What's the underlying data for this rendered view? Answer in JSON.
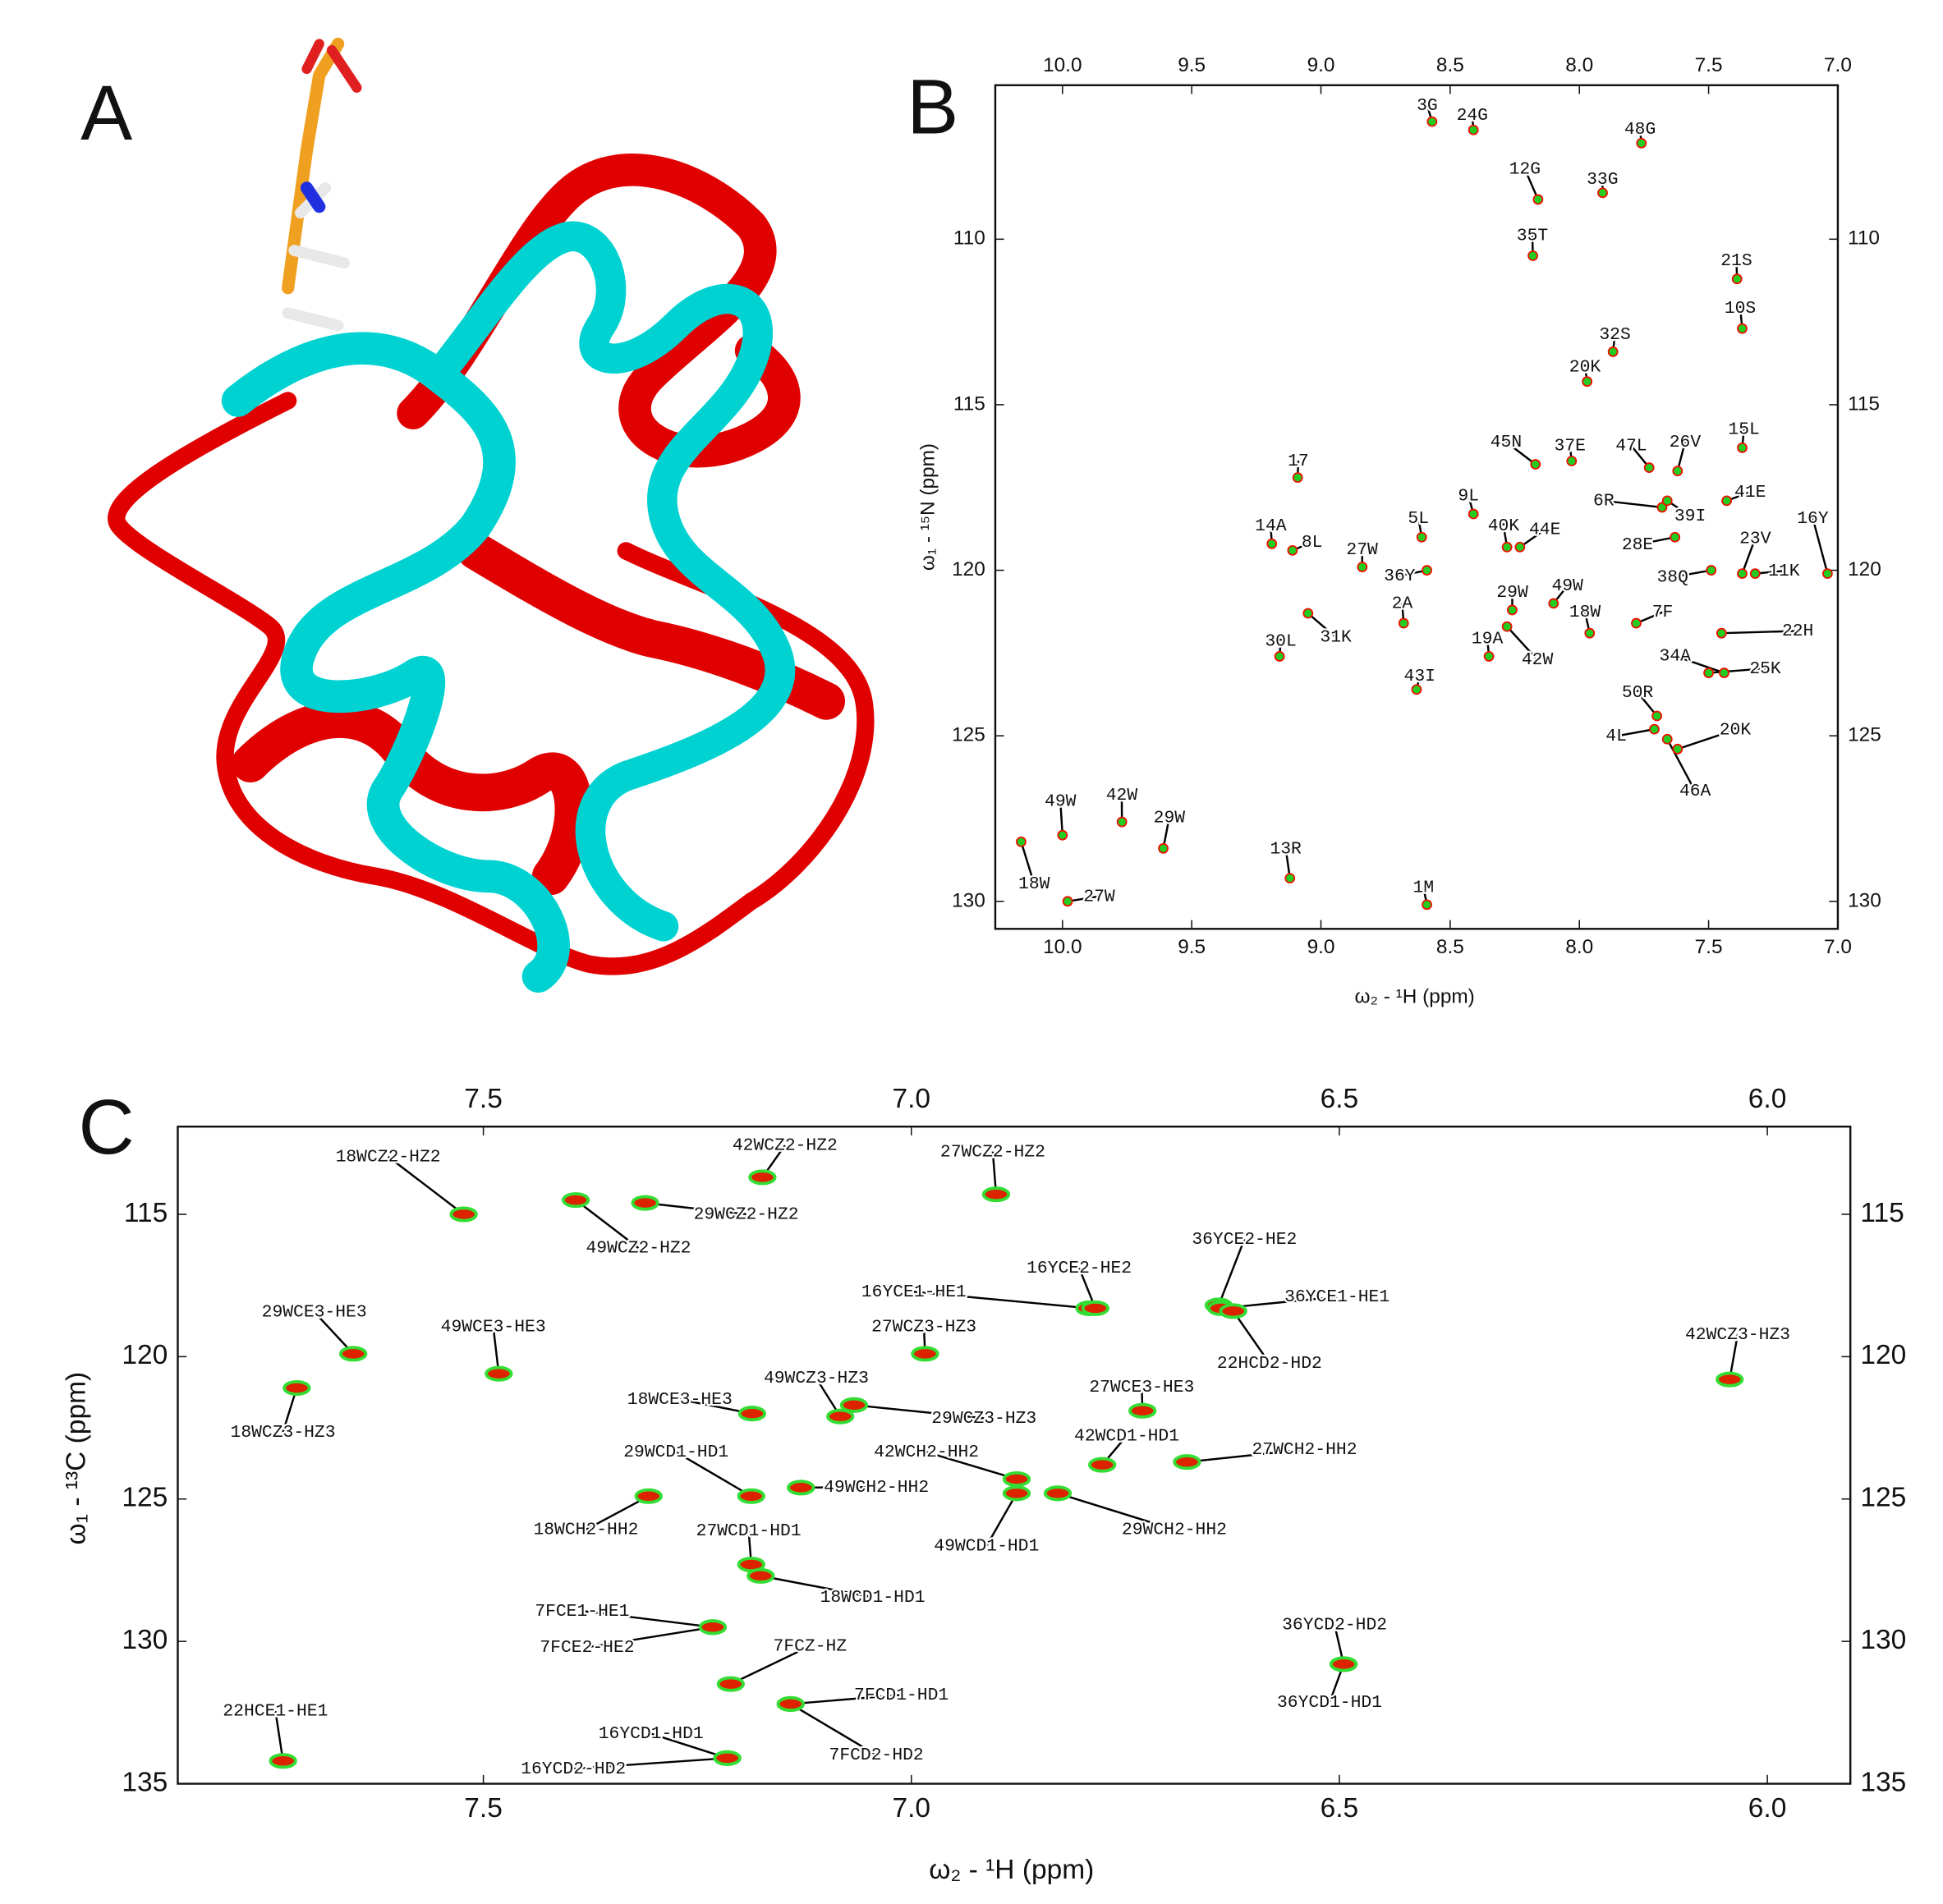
{
  "panel_a": {
    "label": "A"
  },
  "chart_data": [
    {
      "type": "scatter",
      "panel_label": "B",
      "x_label": "ω₂ - ¹H (ppm)",
      "y_label": "ω₁ - ¹⁵N (ppm)",
      "xlim": [
        10.26,
        7.0
      ],
      "ylim": [
        130.83,
        105.35
      ],
      "xticks": [
        {
          "value": 10.0,
          "label": "10.0"
        },
        {
          "value": 9.5,
          "label": "9.5"
        },
        {
          "value": 9.0,
          "label": "9.0"
        },
        {
          "value": 8.5,
          "label": "8.5"
        },
        {
          "value": 8.0,
          "label": "8.0"
        },
        {
          "value": 7.5,
          "label": "7.5"
        },
        {
          "value": 7.0,
          "label": "7.0"
        }
      ],
      "yticks": [
        110,
        115,
        120,
        125,
        130
      ],
      "color": "#22cc22",
      "edge_color": "#ee1100",
      "point_labels": [
        "3G",
        "24G",
        "48G",
        "12G",
        "33G",
        "35T",
        "21S",
        "10S",
        "32S",
        "20K",
        "15L",
        "45N",
        "37E",
        "47L",
        "26V",
        "17",
        "6R",
        "41E",
        "39I",
        "9L",
        "40K",
        "44E",
        "14A",
        "8L",
        "5L",
        "28E",
        "27W",
        "36Y",
        "23V",
        "16Y",
        "38Q",
        "11K",
        "29W",
        "49W",
        "18W",
        "2A",
        "7F",
        "31K",
        "22H",
        "30L",
        "19A",
        "42W",
        "34A",
        "25K",
        "43I",
        "50R",
        "4L",
        "20K",
        "46A",
        "49W",
        "42W",
        "29W",
        "18W",
        "27W",
        "13R",
        "1M"
      ],
      "x": [
        8.57,
        8.41,
        7.76,
        8.16,
        7.91,
        8.18,
        7.39,
        7.37,
        7.87,
        7.97,
        7.37,
        8.17,
        8.03,
        7.73,
        7.62,
        9.09,
        7.68,
        7.43,
        7.66,
        8.41,
        8.28,
        8.23,
        9.19,
        9.11,
        8.61,
        7.63,
        8.84,
        8.59,
        7.37,
        7.04,
        7.49,
        7.32,
        8.26,
        8.1,
        7.96,
        8.68,
        7.78,
        9.05,
        7.45,
        9.16,
        8.35,
        8.28,
        7.44,
        7.5,
        8.63,
        7.7,
        7.71,
        7.62,
        7.66,
        10.0,
        9.77,
        9.61,
        10.16,
        9.98,
        9.12,
        8.59
      ],
      "values": [
        106.45,
        106.7,
        107.1,
        108.8,
        108.6,
        110.5,
        111.2,
        112.7,
        113.4,
        114.3,
        116.3,
        116.8,
        116.7,
        116.9,
        117.0,
        117.2,
        118.1,
        117.9,
        117.9,
        118.3,
        119.3,
        119.3,
        119.2,
        119.4,
        119.0,
        119.0,
        119.9,
        120.0,
        120.1,
        120.1,
        120.0,
        120.1,
        121.2,
        121.0,
        121.9,
        121.6,
        121.6,
        121.3,
        121.9,
        122.6,
        122.6,
        121.7,
        123.1,
        123.1,
        123.6,
        124.4,
        124.8,
        125.4,
        125.1,
        128.0,
        127.6,
        128.4,
        128.2,
        130.0,
        129.3,
        130.1
      ]
    },
    {
      "type": "contour",
      "panel_label": "C",
      "x_label": "ω₂ - ¹H (ppm)",
      "y_label": "ω₁ - ¹³C (ppm)",
      "xlim": [
        7.857,
        5.903
      ],
      "ylim": [
        135,
        111.92
      ],
      "xticks": [
        {
          "value": 7.5,
          "label": "7.5"
        },
        {
          "value": 7.0,
          "label": "7.0"
        },
        {
          "value": 6.5,
          "label": "6.5"
        },
        {
          "value": 6.0,
          "label": "6.0"
        }
      ],
      "yticks": [
        115,
        120,
        125,
        130,
        135
      ],
      "color": "#33dd33",
      "edge_color": "#dd2200",
      "point_labels": [
        "18WCZ2-HZ2",
        "49WCZ2-HZ2",
        "29WCZ2-HZ2",
        "42WCZ2-HZ2",
        "27WCZ2-HZ2",
        "16YCE1-HE1",
        "16YCE2-HE2",
        "36YCE2-HE2",
        "36YCE1-HE1",
        "22HCD2-HD2",
        "29WCE3-HE3",
        "49WCE3-HE3",
        "27WCZ3-HZ3",
        "42WCZ3-HZ3",
        "18WCZ3-HZ3",
        "18WCE3-HE3",
        "49WCZ3-HZ3",
        "29WCZ3-HZ3",
        "27WCE3-HE3",
        "29WCD1-HD1",
        "49WCH2-HH2",
        "18WCH2-HH2",
        "42WCH2-HH2",
        "49WCD1-HD1",
        "29WCH2-HH2",
        "42WCD1-HD1",
        "27WCH2-HH2",
        "27WCD1-HD1",
        "18WCD1-HD1",
        "7FCE1-HE1",
        "7FCE2-HE2",
        "7FCZ-HZ",
        "7FCD1-HD1",
        "7FCD2-HD2",
        "36YCD2-HD2",
        "36YCD1-HD1",
        "22HCE1-HE1",
        "16YCD1-HD1",
        "16YCD2-HD2"
      ],
      "x": [
        7.523,
        7.392,
        7.311,
        7.174,
        6.901,
        6.792,
        6.785,
        6.641,
        6.638,
        6.624,
        7.652,
        7.482,
        6.984,
        6.044,
        7.718,
        7.186,
        7.083,
        7.067,
        6.73,
        7.187,
        7.129,
        7.307,
        6.877,
        6.877,
        6.829,
        6.777,
        6.678,
        7.187,
        7.176,
        7.232,
        7.232,
        7.211,
        7.141,
        7.141,
        6.495,
        6.495,
        7.734,
        7.215,
        7.215
      ],
      "values": [
        115.0,
        114.5,
        114.6,
        113.7,
        114.3,
        118.3,
        118.3,
        118.2,
        118.3,
        118.4,
        119.9,
        120.6,
        119.9,
        120.8,
        121.1,
        122.0,
        122.1,
        121.7,
        121.9,
        124.9,
        124.6,
        124.9,
        124.3,
        124.8,
        124.8,
        123.8,
        123.7,
        127.3,
        127.7,
        129.5,
        129.5,
        131.5,
        132.2,
        132.2,
        130.8,
        130.8,
        134.2,
        134.1,
        134.1
      ]
    }
  ]
}
